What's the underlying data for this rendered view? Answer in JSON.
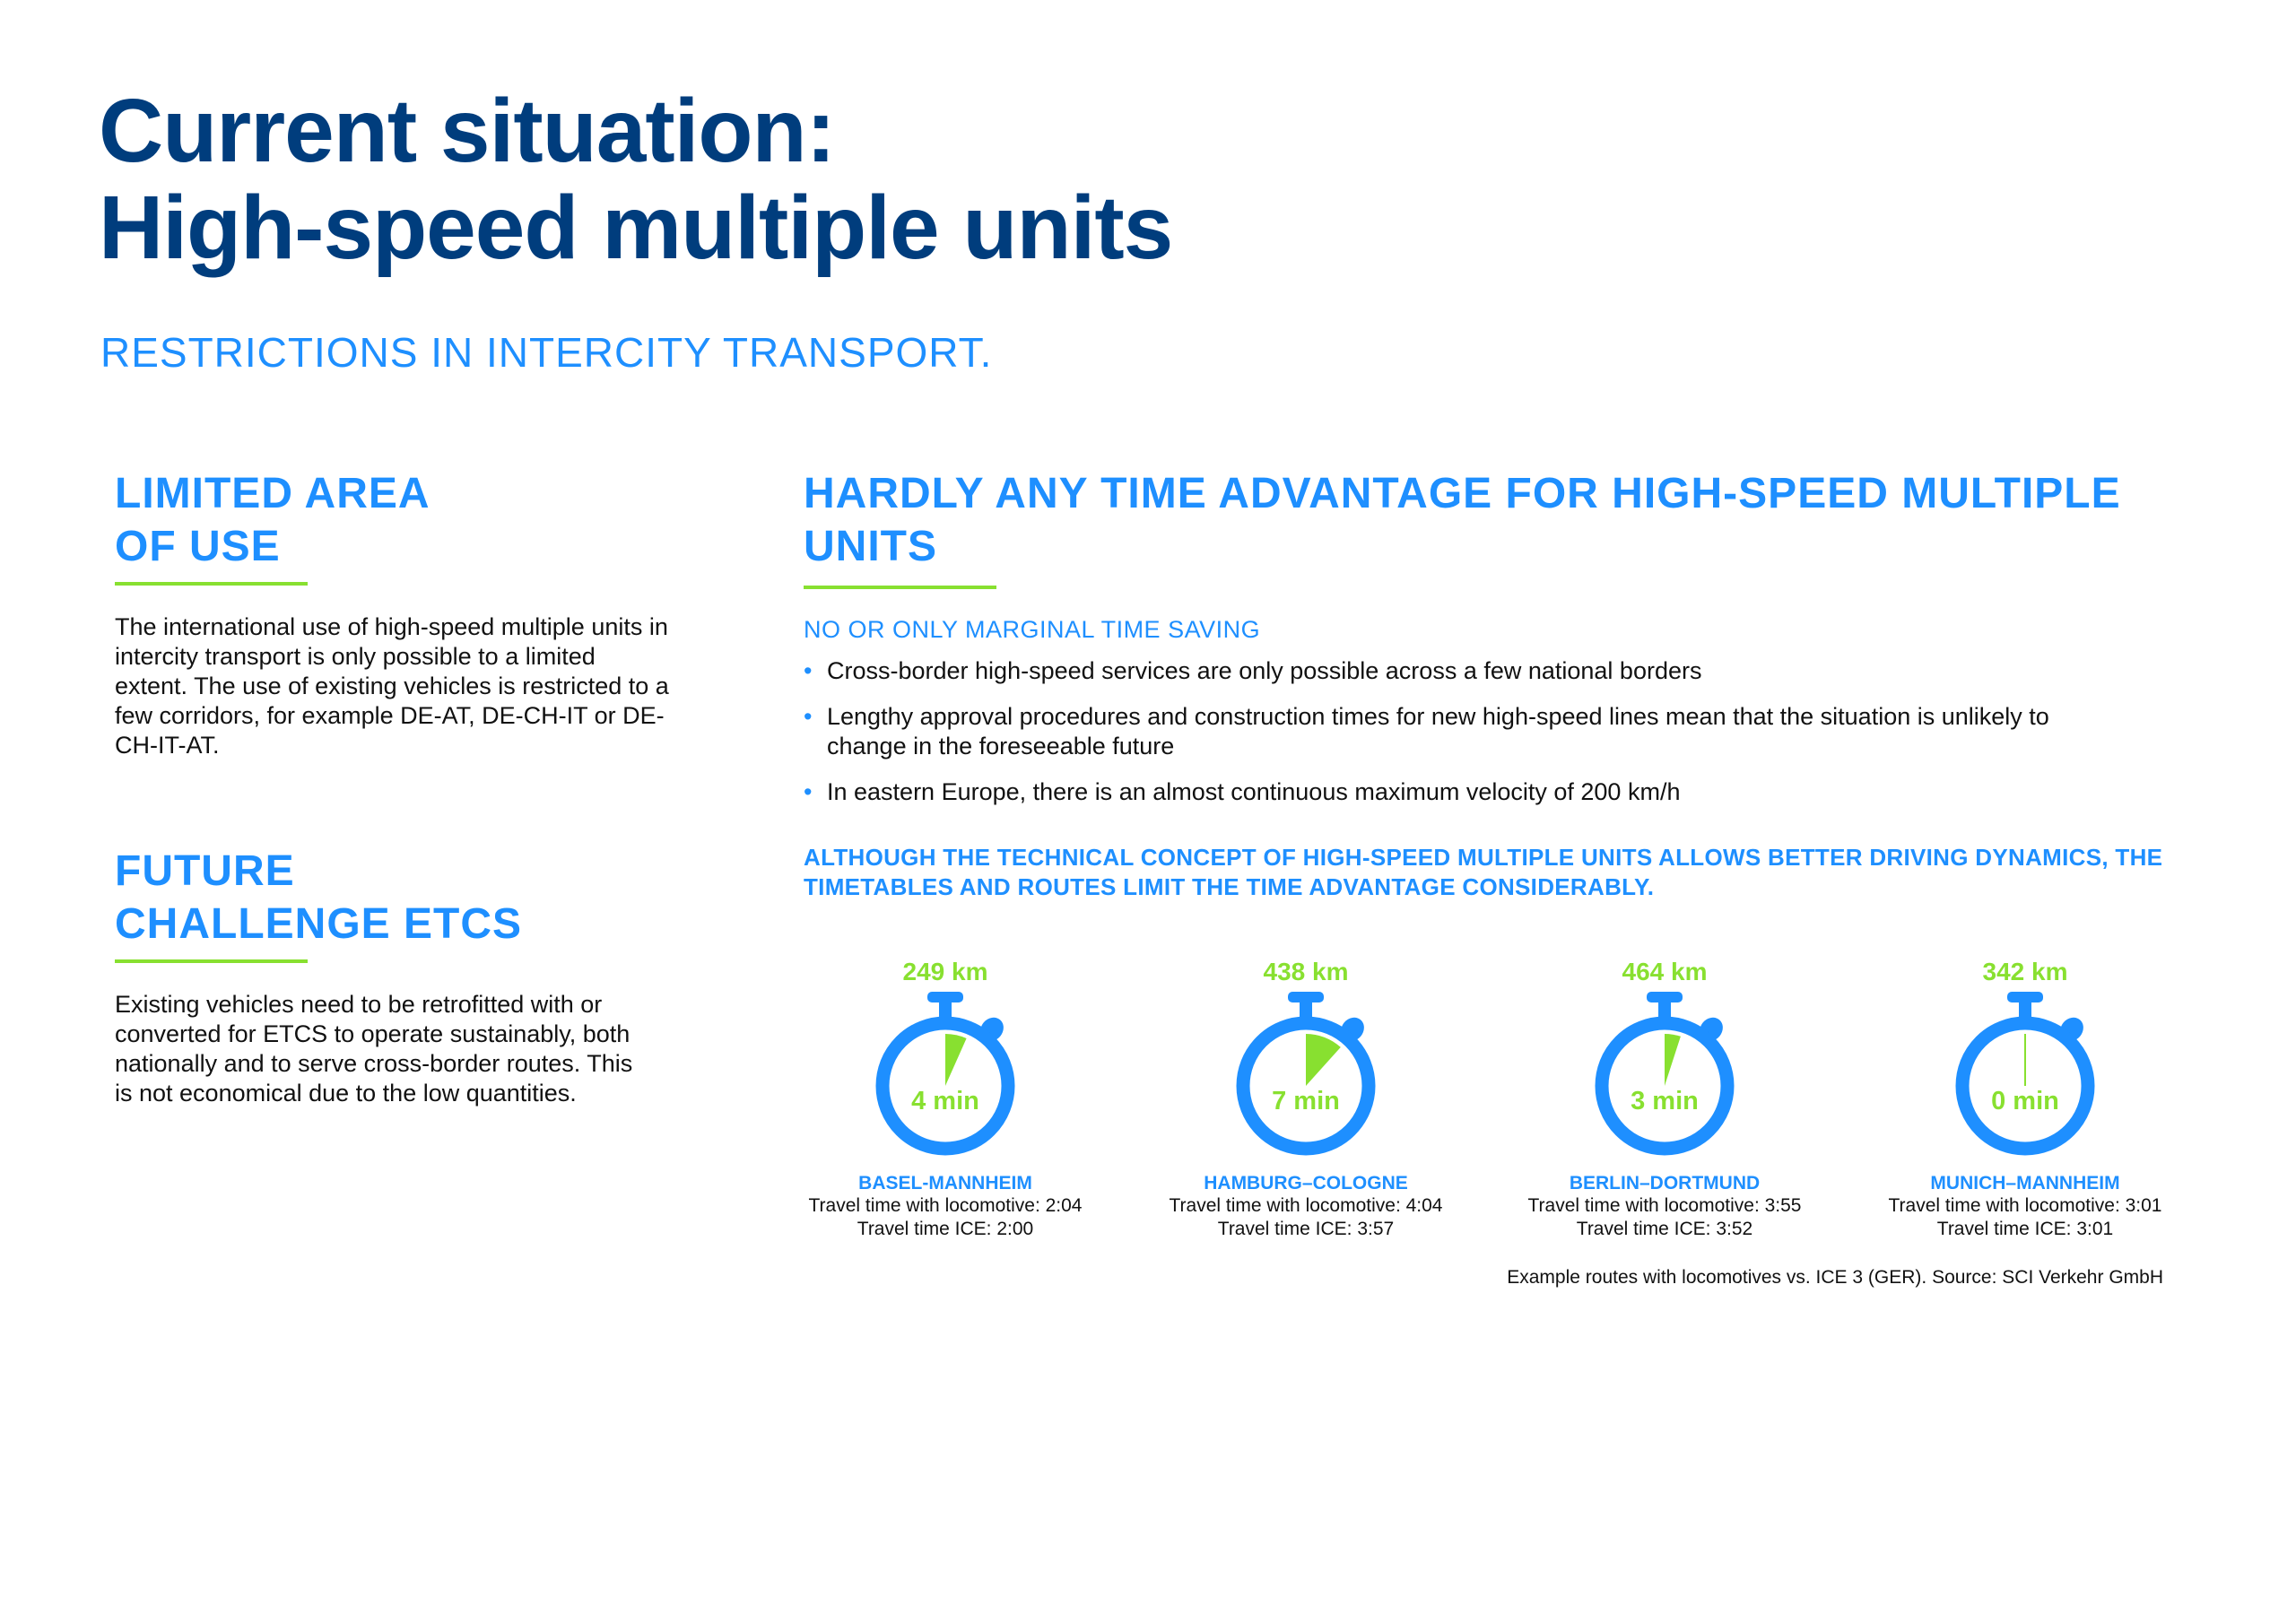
{
  "title": {
    "line1": "Current situation:",
    "line2": "High-speed multiple units"
  },
  "subtitle": "RESTRICTIONS IN INTERCITY TRANSPORT.",
  "left": {
    "sections": [
      {
        "heading_line1": "LIMITED AREA",
        "heading_line2": "OF USE",
        "body": "The international use of high-speed multiple units in intercity transport is only possible to a limited extent. The use of existing vehicles is restricted to a few corridors, for example DE-AT, DE-CH-IT or DE-CH-IT-AT."
      },
      {
        "heading_line1": "FUTURE",
        "heading_line2": "CHALLENGE ETCS",
        "body": "Existing vehicles need to be retrofitted with or converted for ETCS to operate sustainably, both nationally and to serve cross-border routes. This is not economical due to the low quantities."
      }
    ]
  },
  "right": {
    "heading": "HARDLY ANY TIME ADVANTAGE FOR HIGH-SPEED MULTIPLE UNITS",
    "subheading": "NO OR ONLY MARGINAL TIME SAVING",
    "bullets": [
      "Cross-border high-speed services are only possible across a few national borders",
      "Lengthy approval procedures and construction times for new high-speed lines mean that the situation is unlikely to change in the foreseeable future",
      "In eastern Europe, there is an almost continuous maximum velocity of 200 km/h"
    ],
    "statement": "ALTHOUGH THE TECHNICAL CONCEPT OF HIGH-SPEED MULTIPLE UNITS ALLOWS BETTER DRIVING DYNAMICS, THE TIMETABLES AND ROUTES LIMIT THE TIME ADVANTAGE CONSIDERABLY.",
    "routes": [
      {
        "distance": "249 km",
        "saving": "4 min",
        "saving_minutes": 4,
        "name": "BASEL-MANNHEIM",
        "loco": "Travel time with locomotive: 2:04",
        "ice": "Travel time ICE: 2:00"
      },
      {
        "distance": "438 km",
        "saving": "7 min",
        "saving_minutes": 7,
        "name": "HAMBURG–COLOGNE",
        "loco": "Travel time with locomotive: 4:04",
        "ice": "Travel time ICE: 3:57"
      },
      {
        "distance": "464 km",
        "saving": "3 min",
        "saving_minutes": 3,
        "name": "BERLIN–DORTMUND",
        "loco": "Travel time with locomotive: 3:55",
        "ice": "Travel time ICE: 3:52"
      },
      {
        "distance": "342 km",
        "saving": "0 min",
        "saving_minutes": 0,
        "name": "MUNICH–MANNHEIM",
        "loco": "Travel time with locomotive: 3:01",
        "ice": "Travel time ICE: 3:01"
      }
    ],
    "source": "Example routes with locomotives vs. ICE 3 (GER). Source: SCI Verkehr GmbH"
  },
  "colors": {
    "navy": "#003d7d",
    "blue": "#1e8fff",
    "green": "#88e030"
  },
  "icons": {
    "route": "stopwatch-icon"
  }
}
